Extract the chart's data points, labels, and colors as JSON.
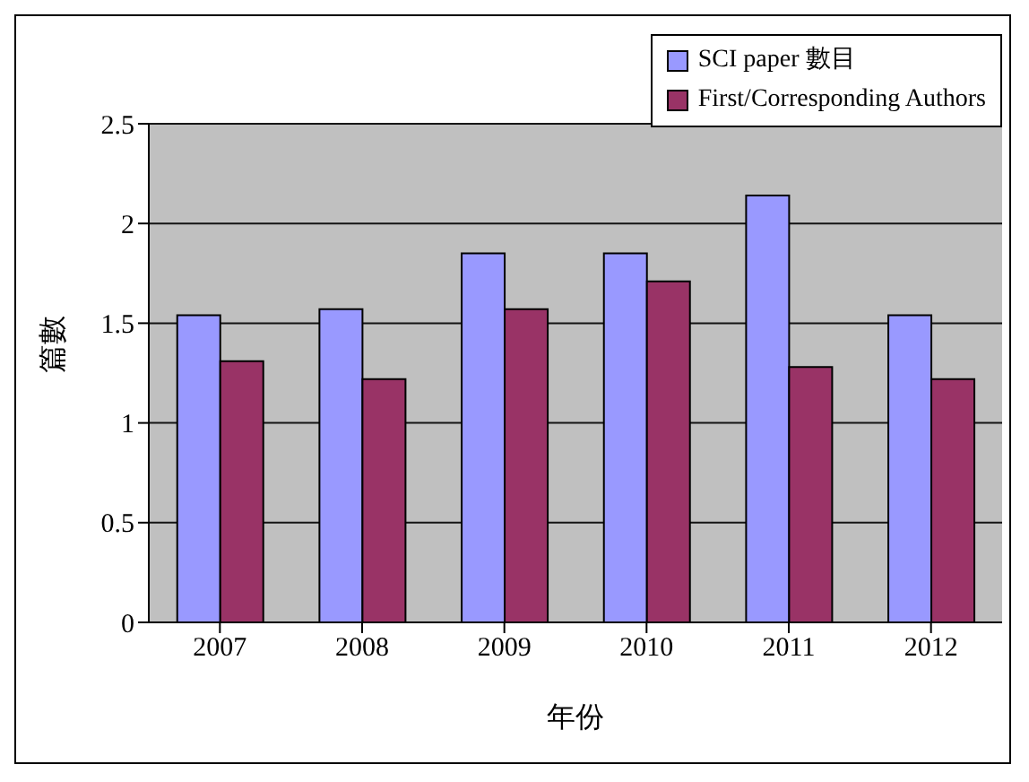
{
  "chart_data": {
    "type": "bar",
    "xlabel": "年份",
    "ylabel": "篇數",
    "categories": [
      "2007",
      "2008",
      "2009",
      "2010",
      "2011",
      "2012"
    ],
    "series": [
      {
        "name": "SCI paper 數目",
        "color": "#9999ff",
        "values": [
          1.54,
          1.57,
          1.85,
          1.85,
          2.14,
          1.54
        ]
      },
      {
        "name": "First/Corresponding Authors",
        "color": "#993366",
        "values": [
          1.31,
          1.22,
          1.57,
          1.71,
          1.28,
          1.22
        ]
      }
    ],
    "ylim": [
      0,
      2.5
    ],
    "yticks": [
      0,
      0.5,
      1,
      1.5,
      2,
      2.5
    ],
    "grid": "y",
    "legend": "top right"
  }
}
